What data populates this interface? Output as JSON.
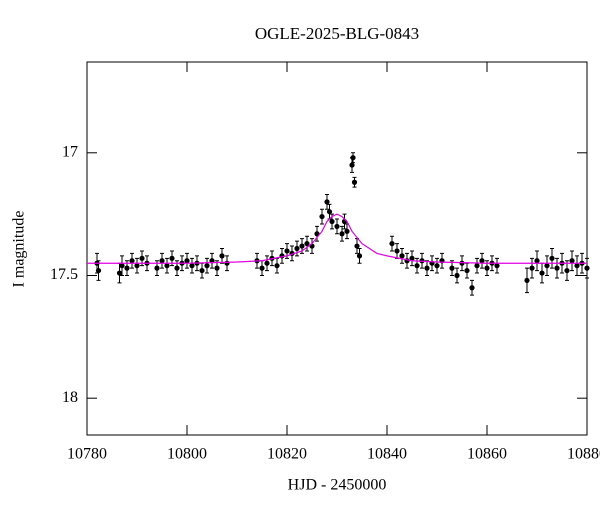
{
  "chart_data": {
    "type": "scatter",
    "title": "OGLE-2025-BLG-0843",
    "x_label": "HJD - 2450000",
    "y_label": "I magnitude",
    "xlim": [
      10780,
      10880
    ],
    "xticks": [
      10780,
      10800,
      10820,
      10840,
      10860,
      10880
    ],
    "ylim": [
      18.15,
      16.63
    ],
    "yticks": [
      17,
      17.5,
      18
    ],
    "points": {
      "color": "#000000",
      "x": [
        10782,
        10782.3,
        10786.5,
        10787,
        10788,
        10789,
        10790,
        10791,
        10792,
        10794,
        10795,
        10796,
        10797,
        10798,
        10799,
        10800,
        10801,
        10802,
        10803,
        10804,
        10805,
        10806,
        10807,
        10808,
        10814,
        10815,
        10816,
        10817,
        10818,
        10819,
        10820,
        10821,
        10822,
        10823,
        10824,
        10825,
        10826,
        10827,
        10828,
        10828.5,
        10829,
        10830,
        10831,
        10831.5,
        10832,
        10833,
        10833.2,
        10833.5,
        10834,
        10834.5,
        10841,
        10842,
        10843,
        10844,
        10845,
        10846,
        10847,
        10848,
        10849,
        10850,
        10851,
        10853,
        10854,
        10855,
        10856,
        10857,
        10858,
        10859,
        10860,
        10861,
        10862,
        10868,
        10869,
        10870,
        10871,
        10872,
        10873,
        10874,
        10875,
        10876,
        10877,
        10878,
        10879,
        10880
      ],
      "values": [
        17.45,
        17.48,
        17.49,
        17.46,
        17.47,
        17.44,
        17.46,
        17.43,
        17.45,
        17.47,
        17.44,
        17.46,
        17.43,
        17.47,
        17.45,
        17.44,
        17.46,
        17.45,
        17.48,
        17.46,
        17.44,
        17.47,
        17.42,
        17.45,
        17.44,
        17.47,
        17.45,
        17.43,
        17.46,
        17.42,
        17.4,
        17.41,
        17.39,
        17.38,
        17.37,
        17.38,
        17.33,
        17.26,
        17.2,
        17.24,
        17.28,
        17.3,
        17.33,
        17.28,
        17.32,
        17.05,
        17.02,
        17.12,
        17.38,
        17.42,
        17.37,
        17.4,
        17.42,
        17.44,
        17.43,
        17.46,
        17.44,
        17.47,
        17.45,
        17.46,
        17.44,
        17.47,
        17.5,
        17.45,
        17.48,
        17.55,
        17.46,
        17.44,
        17.47,
        17.45,
        17.46,
        17.52,
        17.47,
        17.44,
        17.49,
        17.46,
        17.43,
        17.47,
        17.45,
        17.48,
        17.44,
        17.46,
        17.45,
        17.47
      ],
      "errors": [
        0.04,
        0.04,
        0.04,
        0.04,
        0.03,
        0.03,
        0.03,
        0.03,
        0.03,
        0.03,
        0.03,
        0.03,
        0.03,
        0.03,
        0.03,
        0.03,
        0.03,
        0.03,
        0.03,
        0.03,
        0.03,
        0.03,
        0.03,
        0.03,
        0.03,
        0.03,
        0.03,
        0.03,
        0.03,
        0.03,
        0.03,
        0.03,
        0.03,
        0.03,
        0.03,
        0.03,
        0.03,
        0.03,
        0.03,
        0.03,
        0.03,
        0.03,
        0.03,
        0.03,
        0.03,
        0.03,
        0.02,
        0.02,
        0.03,
        0.03,
        0.03,
        0.03,
        0.03,
        0.03,
        0.03,
        0.03,
        0.03,
        0.03,
        0.03,
        0.03,
        0.03,
        0.03,
        0.03,
        0.03,
        0.03,
        0.03,
        0.03,
        0.03,
        0.03,
        0.03,
        0.03,
        0.05,
        0.04,
        0.04,
        0.04,
        0.04,
        0.04,
        0.04,
        0.04,
        0.04,
        0.04,
        0.04,
        0.04,
        0.04
      ]
    },
    "model": {
      "color": "#e000e0",
      "x": [
        10780,
        10790,
        10800,
        10810,
        10815,
        10820,
        10823,
        10825,
        10827,
        10828,
        10829,
        10830,
        10831,
        10832,
        10833,
        10835,
        10838,
        10840,
        10845,
        10850,
        10860,
        10870,
        10880
      ],
      "values": [
        17.45,
        17.45,
        17.45,
        17.445,
        17.44,
        17.42,
        17.4,
        17.37,
        17.32,
        17.28,
        17.26,
        17.25,
        17.26,
        17.28,
        17.32,
        17.37,
        17.41,
        17.42,
        17.44,
        17.445,
        17.45,
        17.45,
        17.45
      ]
    }
  }
}
